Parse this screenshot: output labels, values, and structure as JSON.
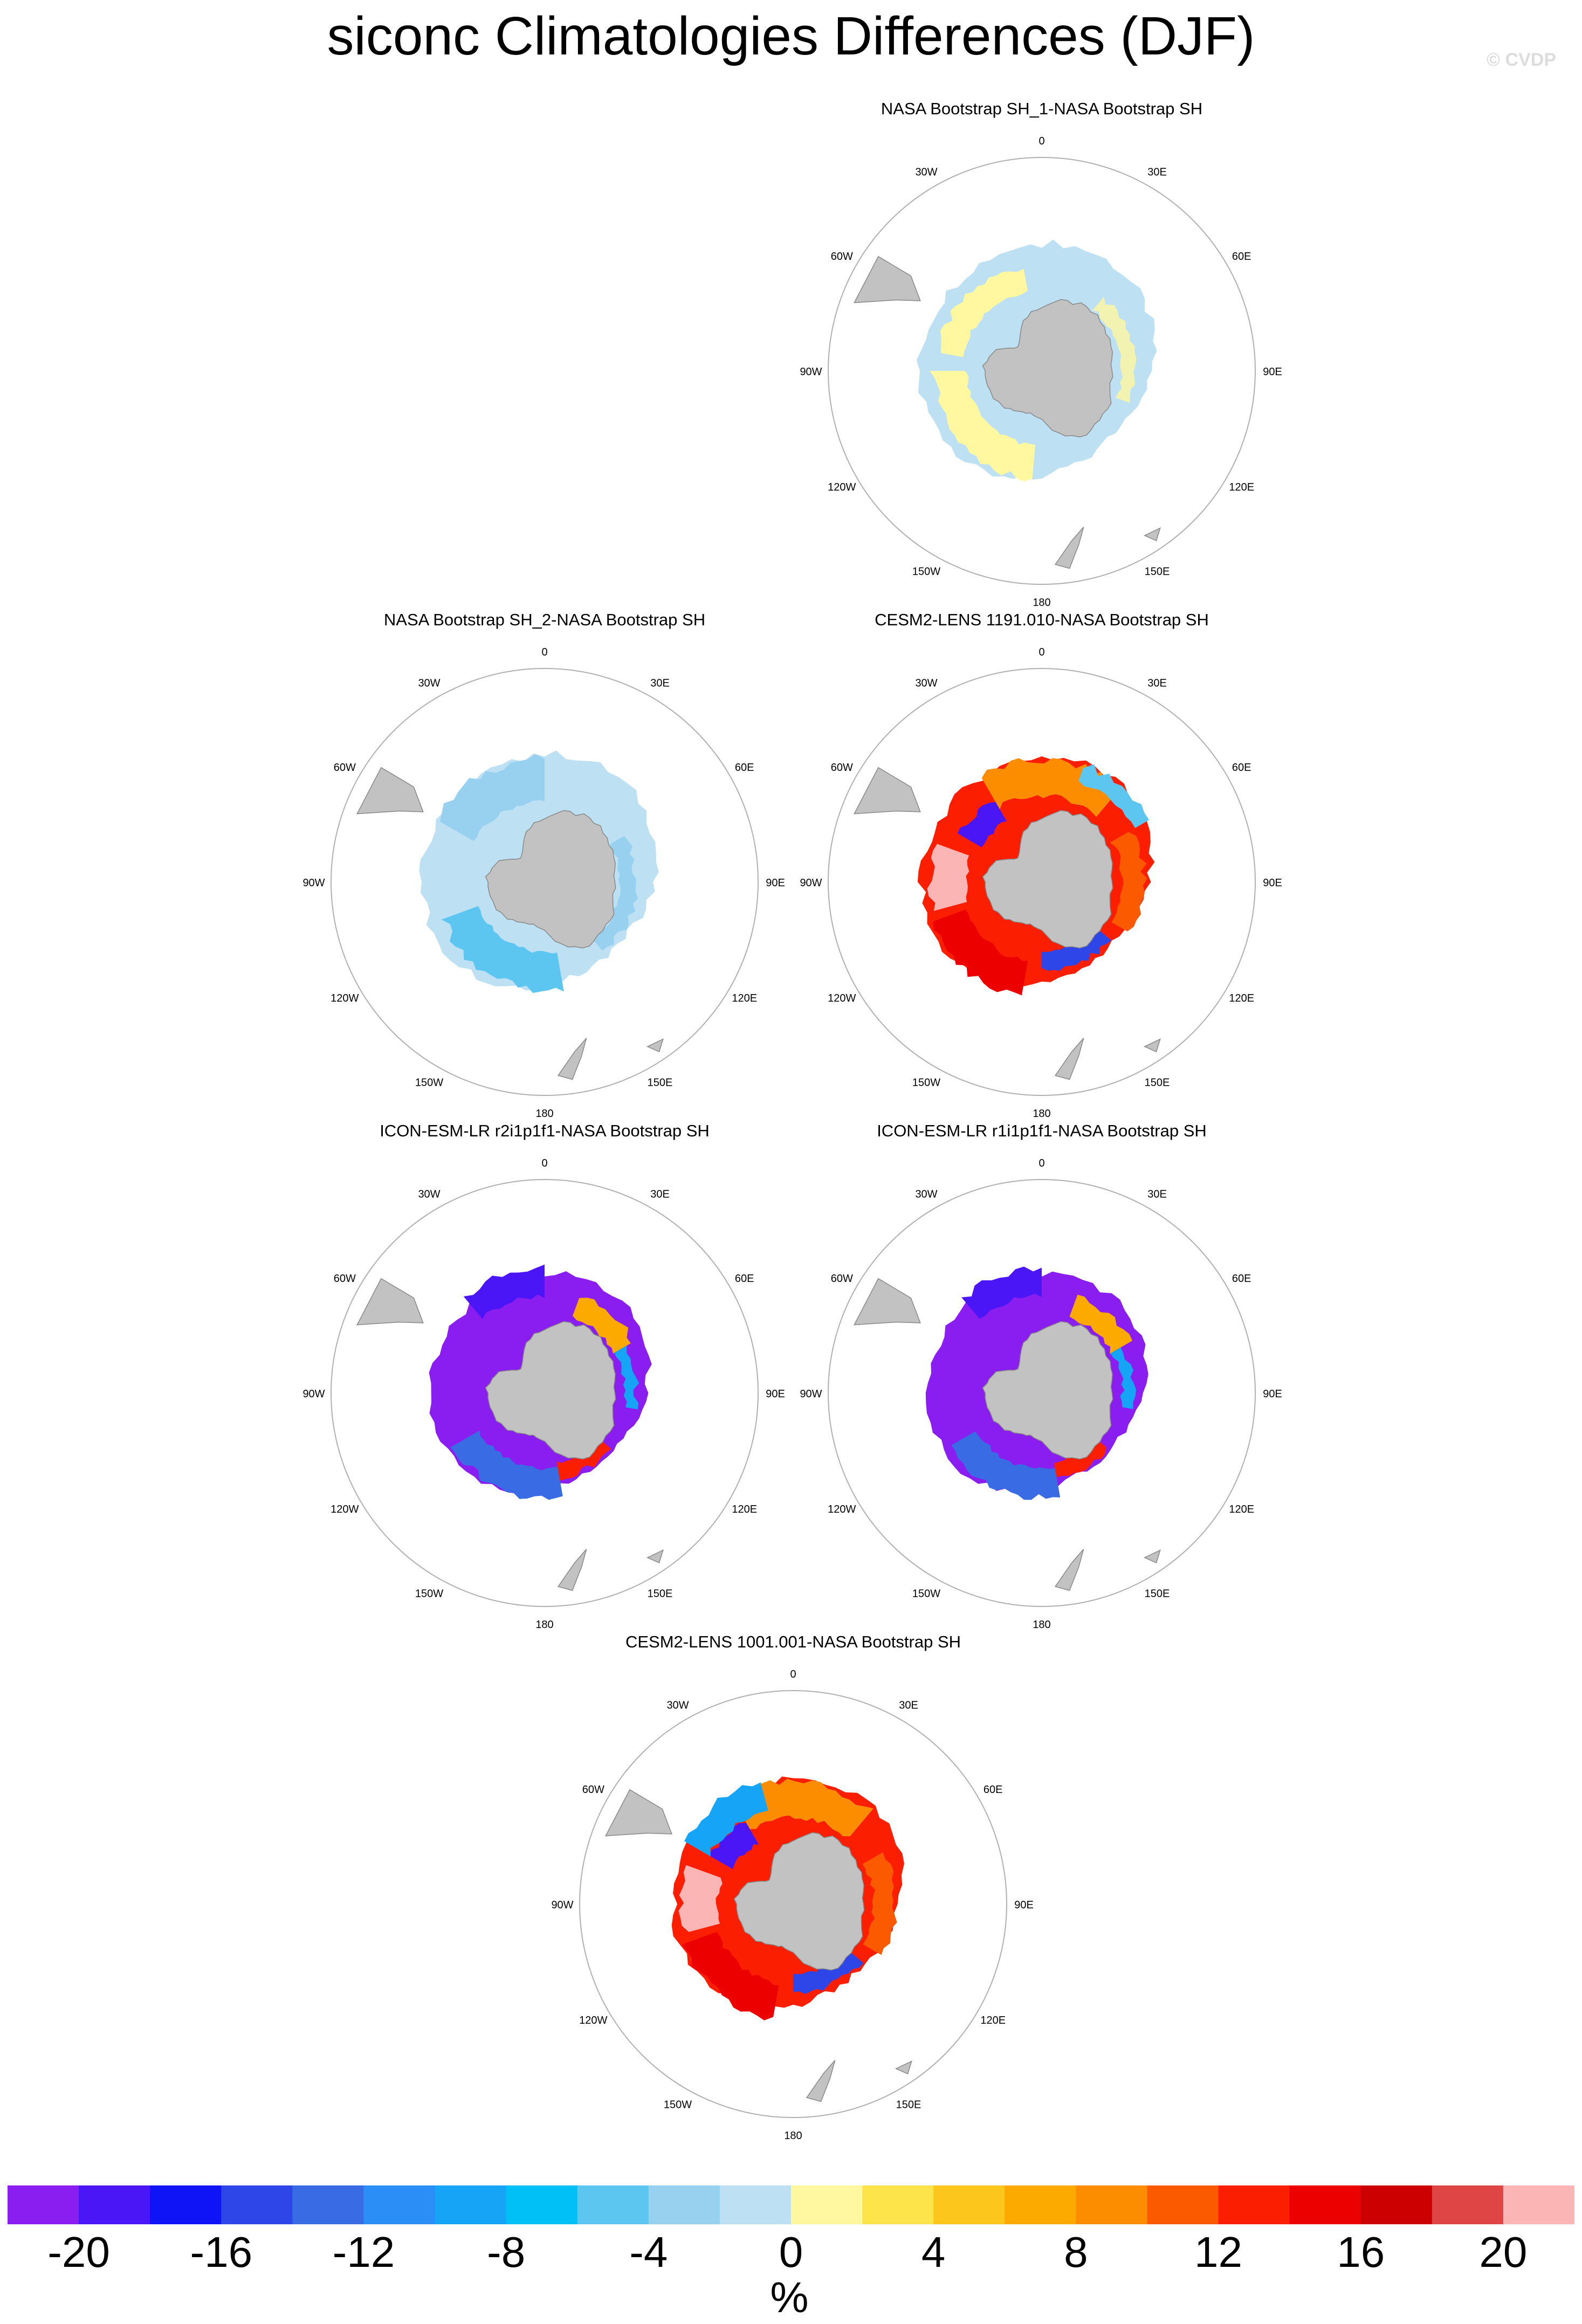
{
  "figure": {
    "title": "siconc Climatologies Differences (DJF)",
    "credit": "© CVDP"
  },
  "axes": {
    "lon_labels": [
      "0",
      "30E",
      "60E",
      "90E",
      "120E",
      "150E",
      "180",
      "150W",
      "120W",
      "90W",
      "60W",
      "30W"
    ]
  },
  "panels": [
    {
      "title": "NASA Bootstrap SH_1-NASA Bootstrap SH",
      "pattern": "weak-neg-pos",
      "row": 0,
      "col": 1
    },
    {
      "title": "NASA Bootstrap SH_2-NASA Bootstrap SH",
      "pattern": "light-neg",
      "row": 1,
      "col": 0
    },
    {
      "title": "CESM2-LENS 1191.010-NASA Bootstrap SH",
      "pattern": "pos-mixed",
      "row": 1,
      "col": 1
    },
    {
      "title": "ICON-ESM-LR r2i1p1f1-NASA Bootstrap SH",
      "pattern": "strong-neg",
      "row": 2,
      "col": 0
    },
    {
      "title": "ICON-ESM-LR r1i1p1f1-NASA Bootstrap SH",
      "pattern": "strong-neg",
      "row": 2,
      "col": 1
    },
    {
      "title": "CESM2-LENS 1001.001-NASA Bootstrap SH",
      "pattern": "pos-mixed-2",
      "row": 3,
      "col": 0.5
    }
  ],
  "colorbar": {
    "units": "%",
    "tick_labels": [
      "-20",
      "-16",
      "-12",
      "-8",
      "-4",
      "0",
      "4",
      "8",
      "12",
      "16",
      "20"
    ],
    "colors": [
      "#8a1df0",
      "#4b16f5",
      "#0f14f7",
      "#2e45e8",
      "#386be4",
      "#2a8ef6",
      "#16a4f6",
      "#00c0f6",
      "#5cc6f1",
      "#97d1ef",
      "#bde1f3",
      "#fff8a0",
      "#fde44a",
      "#fcc61c",
      "#fca900",
      "#fc8c00",
      "#fc5a00",
      "#fc1e00",
      "#ec0000",
      "#cc0000",
      "#e04545",
      "#fbb5b5"
    ]
  },
  "colors": {
    "land": "#c2c2c2",
    "circle": "#b0b0b0"
  }
}
